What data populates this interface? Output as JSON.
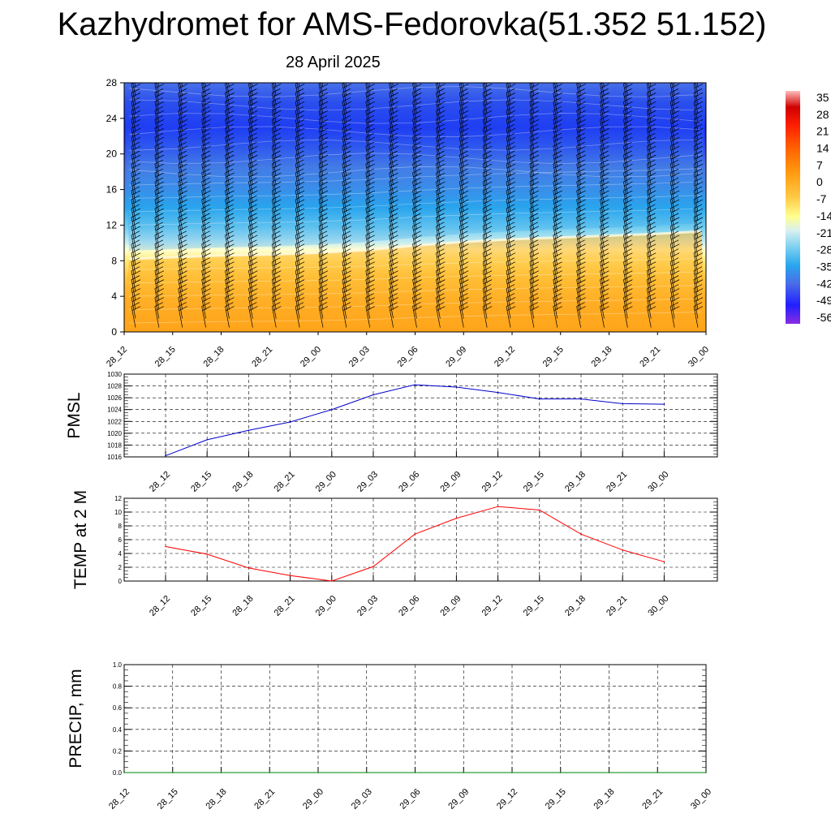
{
  "title": "Kazhydromet for AMS-Fedorovka(51.352 51.152)",
  "subtitle": "28 April 2025",
  "chart_data": [
    {
      "type": "heatmap",
      "name": "cross-section",
      "x_labels": [
        "28_12",
        "28_15",
        "28_18",
        "28_21",
        "29_00",
        "29_03",
        "29_06",
        "29_09",
        "29_12",
        "29_15",
        "29_18",
        "29_21",
        "30_00"
      ],
      "y_ticks": [
        "0",
        "4",
        "8",
        "12",
        "16",
        "20",
        "24",
        "28"
      ],
      "ylim": [
        0,
        28
      ],
      "freezing_level": [
        8.2,
        8.4,
        8.6,
        8.7,
        8.9,
        9.2,
        9.7,
        10.1,
        10.4,
        10.6,
        10.8,
        11.0,
        11.3
      ],
      "colorbar": {
        "labels": [
          "35",
          "28",
          "21",
          "14",
          "7",
          "0",
          "-7",
          "-14",
          "-21",
          "-28",
          "-35",
          "-42",
          "-49",
          "-56"
        ],
        "range": [
          -56,
          35
        ]
      },
      "wind_barbs": true,
      "grid": false
    },
    {
      "type": "line",
      "ylabel": "PMSL",
      "x": [
        "28_12",
        "28_15",
        "28_18",
        "28_21",
        "29_00",
        "29_03",
        "29_06",
        "29_09",
        "29_12",
        "29_15",
        "29_18",
        "29_21",
        "30_00"
      ],
      "y_ticks": [
        "1016",
        "1018",
        "1020",
        "1022",
        "1024",
        "1026",
        "1028",
        "1030"
      ],
      "ylim": [
        1016,
        1030
      ],
      "series": [
        {
          "values": [
            1016.2,
            1018.9,
            1020.5,
            1021.9,
            1024.0,
            1026.5,
            1028.2,
            1027.8,
            1026.9,
            1025.8,
            1025.8,
            1025.0,
            1024.9
          ],
          "color": "#0000cc"
        }
      ],
      "grid": true
    },
    {
      "type": "line",
      "ylabel": "TEMP at 2 M",
      "x": [
        "28_12",
        "28_15",
        "28_18",
        "28_21",
        "29_00",
        "29_03",
        "29_06",
        "29_09",
        "29_12",
        "29_15",
        "29_18",
        "29_21",
        "30_00"
      ],
      "y_ticks": [
        "0",
        "2",
        "4",
        "6",
        "8",
        "10",
        "12"
      ],
      "ylim": [
        0,
        12
      ],
      "series": [
        {
          "values": [
            5.0,
            3.9,
            1.9,
            0.8,
            0.0,
            2.1,
            6.8,
            9.1,
            10.8,
            10.3,
            6.8,
            4.5,
            2.8
          ],
          "color": "#ff0000"
        }
      ],
      "grid": true
    },
    {
      "type": "line",
      "ylabel": "PRECIP, mm",
      "x": [
        "28_12",
        "28_15",
        "28_18",
        "28_21",
        "29_00",
        "29_03",
        "29_06",
        "29_09",
        "29_12",
        "29_15",
        "29_18",
        "29_21",
        "30_00"
      ],
      "y_ticks": [
        "0.0",
        "0.2",
        "0.4",
        "0.6",
        "0.8",
        "1.0"
      ],
      "ylim": [
        0,
        1
      ],
      "series": [
        {
          "values": [
            0,
            0,
            0,
            0,
            0,
            0,
            0,
            0,
            0,
            0,
            0,
            0,
            0
          ],
          "color": "#008000"
        }
      ],
      "grid": true
    }
  ]
}
